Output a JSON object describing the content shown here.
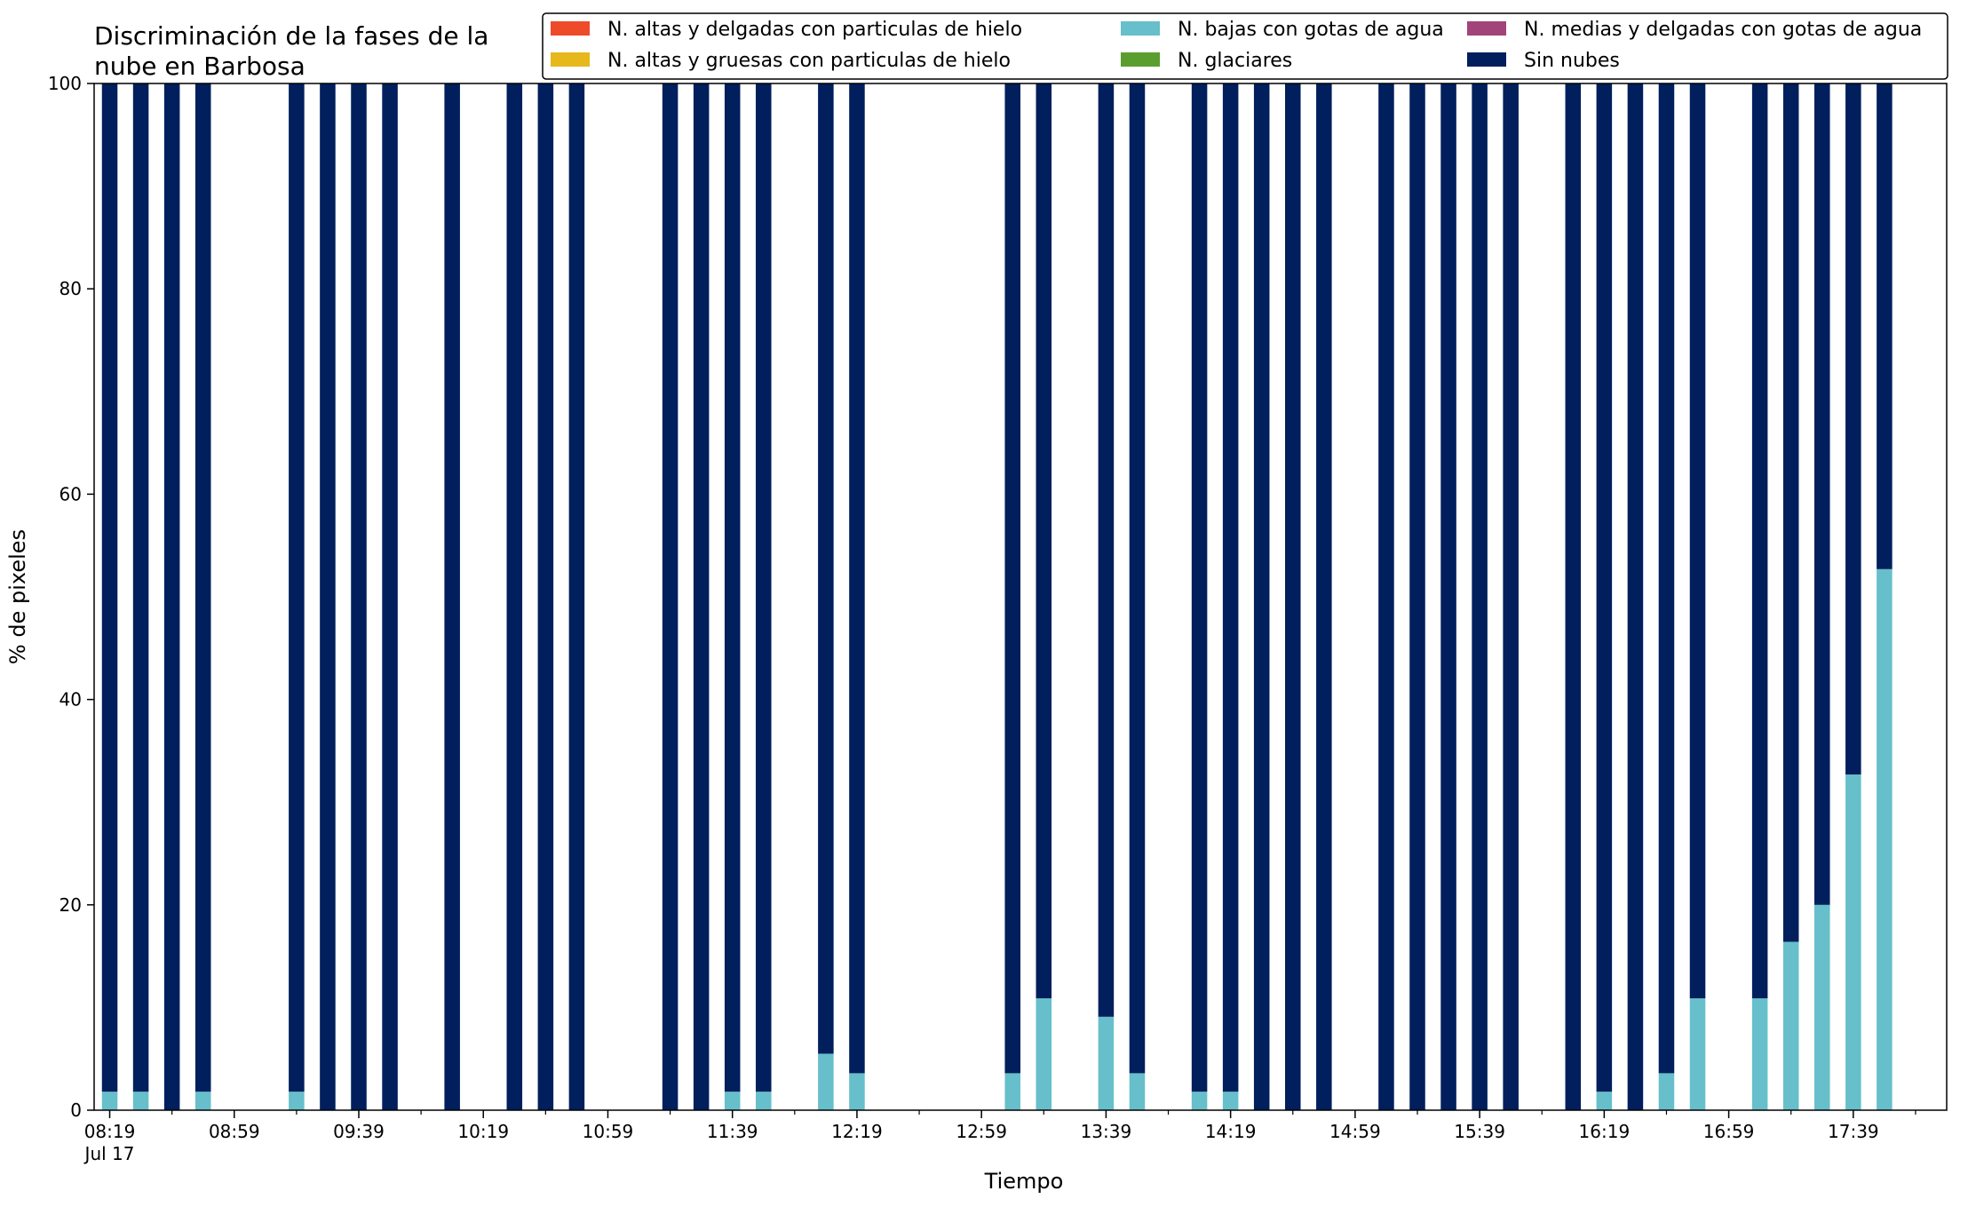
{
  "chart_data": {
    "type": "bar",
    "stacked": true,
    "title": "Discriminación de la fases de la\nnube en Barbosa",
    "xlabel": "Tiempo",
    "ylabel": "% de pixeles",
    "ylim": [
      0,
      100
    ],
    "yticks": [
      0,
      20,
      40,
      60,
      80,
      100
    ],
    "xlim": [
      "08:14",
      "18:09"
    ],
    "x_date": "Jul 17",
    "xtick_labels": [
      "08:19",
      "08:59",
      "09:39",
      "10:19",
      "10:59",
      "11:39",
      "12:19",
      "12:59",
      "13:39",
      "14:19",
      "14:59",
      "15:39",
      "16:19",
      "16:59",
      "17:39"
    ],
    "minor_tick_interval_min": 20,
    "bar_interval_min": 10,
    "legend_position": "top-right",
    "grid": false,
    "series": [
      {
        "name": "N. altas y delgadas con particulas de hielo",
        "color": "#ee4b2b"
      },
      {
        "name": "N. altas y gruesas con particulas de hielo",
        "color": "#e6b81c"
      },
      {
        "name": "N. bajas con gotas de agua",
        "color": "#66bfca"
      },
      {
        "name": "N. glaciares",
        "color": "#5a9e2f"
      },
      {
        "name": "N. medias y delgadas con gotas de agua",
        "color": "#a0447a"
      },
      {
        "name": "Sin nubes",
        "color": "#001f5c"
      }
    ],
    "bars": [
      {
        "time": "08:19",
        "values": [
          0,
          0,
          1.8,
          0,
          0,
          98.2
        ]
      },
      {
        "time": "08:29",
        "values": [
          0,
          0,
          1.8,
          0,
          0,
          98.2
        ]
      },
      {
        "time": "08:39",
        "values": [
          0,
          0,
          0,
          0,
          0,
          100
        ]
      },
      {
        "time": "08:49",
        "values": [
          0,
          0,
          1.8,
          0,
          0,
          98.2
        ]
      },
      {
        "time": "09:19",
        "values": [
          0,
          0,
          1.8,
          0,
          0,
          98.2
        ]
      },
      {
        "time": "09:29",
        "values": [
          0,
          0,
          0,
          0,
          0,
          100
        ]
      },
      {
        "time": "09:39",
        "values": [
          0,
          0,
          0,
          0,
          0,
          100
        ]
      },
      {
        "time": "09:49",
        "values": [
          0,
          0,
          0,
          0,
          0,
          100
        ]
      },
      {
        "time": "10:09",
        "values": [
          0,
          0,
          0,
          0,
          0,
          100
        ]
      },
      {
        "time": "10:29",
        "values": [
          0,
          0,
          0,
          0,
          0,
          100
        ]
      },
      {
        "time": "10:39",
        "values": [
          0,
          0,
          0,
          0,
          0,
          100
        ]
      },
      {
        "time": "10:49",
        "values": [
          0,
          0,
          0,
          0,
          0,
          100
        ]
      },
      {
        "time": "11:19",
        "values": [
          0,
          0,
          0,
          0,
          0,
          100
        ]
      },
      {
        "time": "11:29",
        "values": [
          0,
          0,
          0,
          0,
          0,
          100
        ]
      },
      {
        "time": "11:39",
        "values": [
          0,
          0,
          1.8,
          0,
          0,
          98.2
        ]
      },
      {
        "time": "11:49",
        "values": [
          0,
          0,
          1.8,
          0,
          0,
          98.2
        ]
      },
      {
        "time": "12:09",
        "values": [
          0,
          0,
          5.5,
          0,
          0,
          94.5
        ]
      },
      {
        "time": "12:19",
        "values": [
          0,
          0,
          3.6,
          0,
          0,
          96.4
        ]
      },
      {
        "time": "13:09",
        "values": [
          0,
          0,
          3.6,
          0,
          0,
          96.4
        ]
      },
      {
        "time": "13:19",
        "values": [
          0,
          0,
          10.9,
          0,
          0,
          89.1
        ]
      },
      {
        "time": "13:39",
        "values": [
          0,
          0,
          9.1,
          0,
          0,
          90.9
        ]
      },
      {
        "time": "13:49",
        "values": [
          0,
          0,
          3.6,
          0,
          0,
          96.4
        ]
      },
      {
        "time": "14:09",
        "values": [
          0,
          0,
          1.8,
          0,
          0,
          98.2
        ]
      },
      {
        "time": "14:19",
        "values": [
          0,
          0,
          1.8,
          0,
          0,
          98.2
        ]
      },
      {
        "time": "14:29",
        "values": [
          0,
          0,
          0,
          0,
          0,
          100
        ]
      },
      {
        "time": "14:39",
        "values": [
          0,
          0,
          0,
          0,
          0,
          100
        ]
      },
      {
        "time": "14:49",
        "values": [
          0,
          0,
          0,
          0,
          0,
          100
        ]
      },
      {
        "time": "15:09",
        "values": [
          0,
          0,
          0,
          0,
          0,
          100
        ]
      },
      {
        "time": "15:19",
        "values": [
          0,
          0,
          0,
          0,
          0,
          100
        ]
      },
      {
        "time": "15:29",
        "values": [
          0,
          0,
          0,
          0,
          0,
          100
        ]
      },
      {
        "time": "15:39",
        "values": [
          0,
          0,
          0,
          0,
          0,
          100
        ]
      },
      {
        "time": "15:49",
        "values": [
          0,
          0,
          0,
          0,
          0,
          100
        ]
      },
      {
        "time": "16:09",
        "values": [
          0,
          0,
          0,
          0,
          0,
          100
        ]
      },
      {
        "time": "16:19",
        "values": [
          0,
          0,
          1.8,
          0,
          0,
          98.2
        ]
      },
      {
        "time": "16:29",
        "values": [
          0,
          0,
          0,
          0,
          0,
          100
        ]
      },
      {
        "time": "16:39",
        "values": [
          0,
          0,
          3.6,
          0,
          0,
          96.4
        ]
      },
      {
        "time": "16:49",
        "values": [
          0,
          0,
          10.9,
          0,
          0,
          89.1
        ]
      },
      {
        "time": "17:09",
        "values": [
          0,
          0,
          10.9,
          0,
          0,
          89.1
        ]
      },
      {
        "time": "17:19",
        "values": [
          0,
          0,
          16.4,
          0,
          0,
          83.6
        ]
      },
      {
        "time": "17:29",
        "values": [
          0,
          0,
          20.0,
          0,
          0,
          80.0
        ]
      },
      {
        "time": "17:39",
        "values": [
          0,
          0,
          32.7,
          0,
          0,
          67.3
        ]
      },
      {
        "time": "17:49",
        "values": [
          0,
          0,
          52.7,
          0,
          0,
          47.3
        ]
      }
    ]
  }
}
